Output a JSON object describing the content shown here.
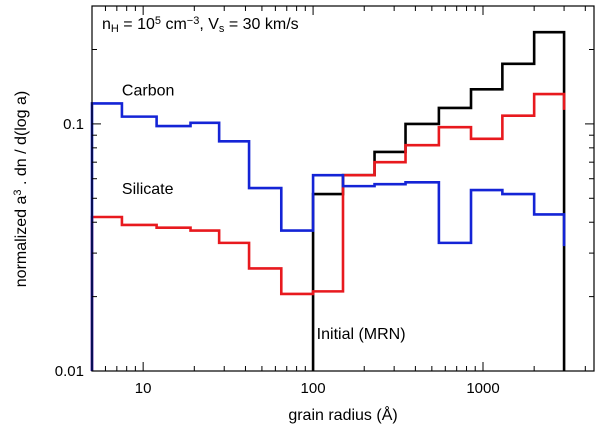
{
  "chart_data": {
    "type": "line",
    "drawstyle": "steps",
    "title": "",
    "header_annotation": {
      "parts": [
        "n",
        "H",
        " = 10",
        "5",
        " cm",
        "−3",
        ", V",
        "s",
        " = 30 km/s"
      ]
    },
    "xlabel": "grain radius (Å)",
    "ylabel": {
      "parts": [
        "normalized a",
        "3",
        " . dn / d(log a)"
      ]
    },
    "xscale": "log",
    "yscale": "log",
    "xlim": [
      5,
      4500
    ],
    "ylim": [
      0.01,
      0.3
    ],
    "x_ticks": [
      {
        "value": 10,
        "label": "10"
      },
      {
        "value": 100,
        "label": "100"
      },
      {
        "value": 1000,
        "label": "1000"
      }
    ],
    "y_ticks": [
      {
        "value": 0.01,
        "label": "0.01"
      },
      {
        "value": 0.1,
        "label": "0.1"
      }
    ],
    "series": [
      {
        "name": "Initial (MRN)",
        "color": "#000000",
        "edges": [
          100,
          150,
          230,
          350,
          550,
          850,
          1300,
          2000,
          3000
        ],
        "values": [
          0.052,
          0.062,
          0.077,
          0.1,
          0.116,
          0.138,
          0.175,
          0.235
        ],
        "baseline": 0.01
      },
      {
        "name": "Silicate",
        "color": "#e8191e",
        "edges": [
          5,
          7.5,
          12,
          19,
          28,
          42,
          65,
          100,
          150,
          230,
          350,
          550,
          850,
          1300,
          2000,
          3000
        ],
        "values": [
          0.042,
          0.039,
          0.038,
          0.037,
          0.033,
          0.026,
          0.0205,
          0.021,
          0.062,
          0.07,
          0.082,
          0.097,
          0.087,
          0.108,
          0.132,
          0.114
        ],
        "baseline": 0.01
      },
      {
        "name": "Carbon",
        "color": "#1424d6",
        "edges": [
          5,
          7.5,
          12,
          19,
          28,
          42,
          65,
          100,
          150,
          230,
          350,
          550,
          850,
          1300,
          2000,
          3000
        ],
        "values": [
          0.121,
          0.107,
          0.098,
          0.101,
          0.085,
          0.055,
          0.037,
          0.062,
          0.056,
          0.057,
          0.058,
          0.033,
          0.054,
          0.052,
          0.043,
          0.032
        ],
        "baseline": 0.01
      }
    ],
    "annotations": [
      {
        "text": "Carbon",
        "x": 7.5,
        "y": 0.13
      },
      {
        "text": "Silicate",
        "x": 7.5,
        "y": 0.052
      },
      {
        "text": "Initial (MRN)",
        "x": 105,
        "y": 0.0135
      }
    ]
  }
}
